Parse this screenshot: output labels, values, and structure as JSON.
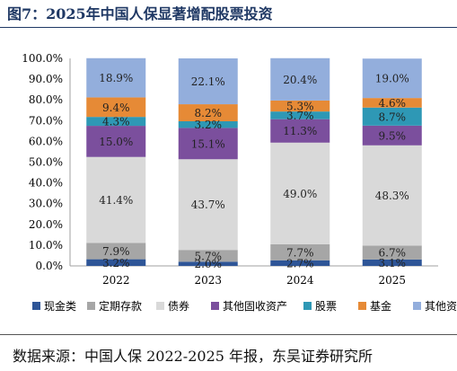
{
  "title": "图7：2025年中国人保显著增配股票投资",
  "source": "数据来源：中国人保 2022-2025 年报，东吴证券研究所",
  "chart_data": {
    "type": "bar",
    "stacked": true,
    "categories": [
      "2022",
      "2023",
      "2024",
      "2025"
    ],
    "ylim": [
      0,
      100
    ],
    "yticks": [
      "0.0%",
      "10.0%",
      "20.0%",
      "30.0%",
      "40.0%",
      "50.0%",
      "60.0%",
      "70.0%",
      "80.0%",
      "90.0%",
      "100.0%"
    ],
    "legend_position": "bottom",
    "series": [
      {
        "name": "现金类",
        "color": "#2e5597",
        "values": [
          3.2,
          2.0,
          2.7,
          3.1
        ],
        "labels": [
          "3.2%",
          "2.0%",
          "2.7%",
          "3.1%"
        ]
      },
      {
        "name": "定期存款",
        "color": "#a6a6a6",
        "values": [
          7.9,
          5.7,
          7.7,
          6.7
        ],
        "labels": [
          "7.9%",
          "5.7%",
          "7.7%",
          "6.7%"
        ]
      },
      {
        "name": "债券",
        "color": "#d9d9d9",
        "values": [
          41.4,
          43.7,
          49.0,
          48.3
        ],
        "labels": [
          "41.4%",
          "43.7%",
          "49.0%",
          "48.3%"
        ]
      },
      {
        "name": "其他固收资产",
        "color": "#7b4f9d",
        "values": [
          15.0,
          15.1,
          11.3,
          9.5
        ],
        "labels": [
          "15.0%",
          "15.1%",
          "11.3%",
          "9.5%"
        ]
      },
      {
        "name": "股票",
        "color": "#2e98b5",
        "values": [
          4.3,
          3.2,
          3.7,
          8.7
        ],
        "labels": [
          "4.3%",
          "3.2%",
          "3.7%",
          "8.7%"
        ]
      },
      {
        "name": "基金",
        "color": "#e68a36",
        "values": [
          9.4,
          8.2,
          5.3,
          4.6
        ],
        "labels": [
          "9.4%",
          "8.2%",
          "5.3%",
          "4.6%"
        ]
      },
      {
        "name": "其他资产",
        "color": "#93aedc",
        "values": [
          18.9,
          22.1,
          20.4,
          19.0
        ],
        "labels": [
          "18.9%",
          "22.1%",
          "20.4%",
          "19.0%"
        ]
      }
    ]
  }
}
